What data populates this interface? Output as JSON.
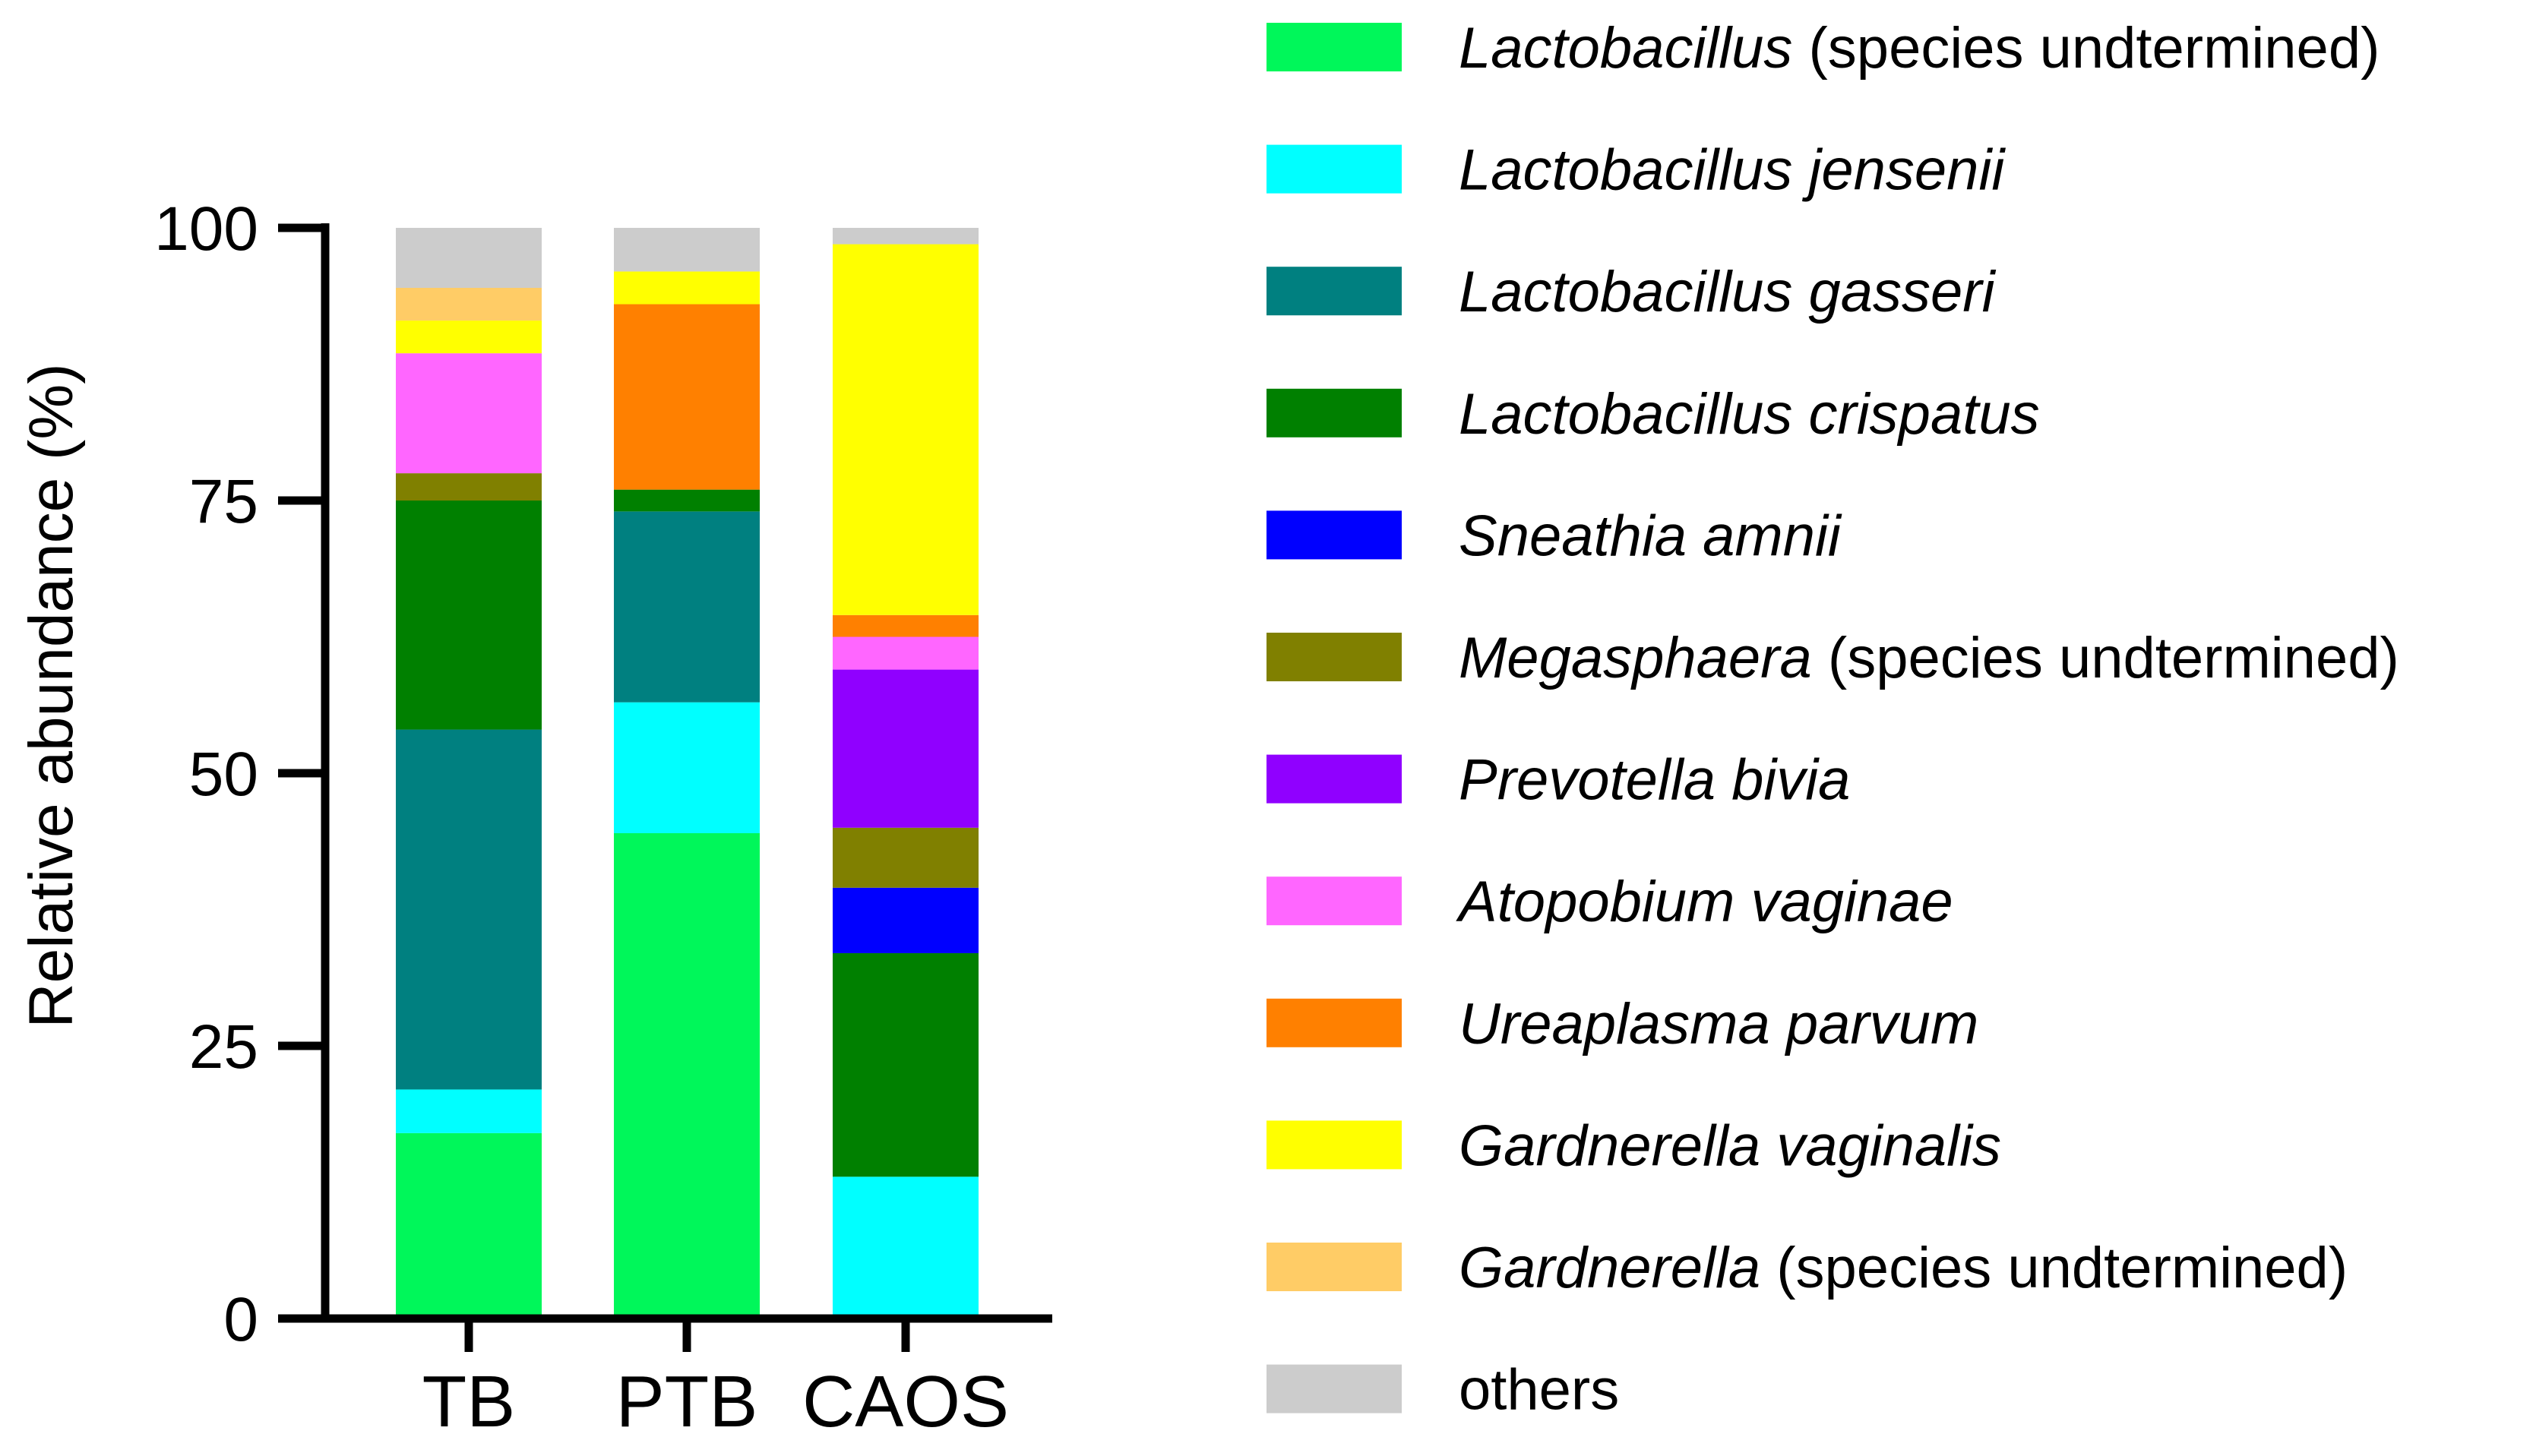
{
  "chart_data": {
    "type": "bar",
    "stacked": true,
    "title": "",
    "xlabel": "",
    "ylabel": "Relative abundance (%)",
    "ylim": [
      0,
      100
    ],
    "yticks": [
      0,
      25,
      50,
      75,
      100
    ],
    "ytick_labels": [
      "0",
      "25",
      "50",
      "75",
      "100"
    ],
    "categories": [
      "TB",
      "PTB",
      "CAOS"
    ],
    "series": [
      {
        "name": "Lactobacillus (species undtermined)",
        "name_italic": "Lactobacillus",
        "name_rest": " (species undtermined)",
        "color": "#00f75a",
        "values": [
          17,
          44.5,
          0
        ]
      },
      {
        "name": "Lactobacillus jensenii",
        "name_italic": "Lactobacillus jensenii",
        "name_rest": "",
        "color": "#00ffff",
        "values": [
          4,
          12,
          13
        ]
      },
      {
        "name": "Lactobacillus gasseri",
        "name_italic": "Lactobacillus gasseri",
        "name_rest": "",
        "color": "#008080",
        "values": [
          33,
          17.5,
          0
        ]
      },
      {
        "name": "Lactobacillus crispatus",
        "name_italic": "Lactobacillus crispatus",
        "name_rest": "",
        "color": "#008000",
        "values": [
          21,
          2,
          20.5
        ]
      },
      {
        "name": "Sneathia amnii",
        "name_italic": "Sneathia amnii",
        "name_rest": "",
        "color": "#0000ff",
        "values": [
          0,
          0,
          6
        ]
      },
      {
        "name": "Megasphaera (species undtermined)",
        "name_italic": "Megasphaera",
        "name_rest": " (species undtermined)",
        "color": "#808000",
        "values": [
          2.5,
          0,
          5.5
        ]
      },
      {
        "name": "Prevotella bivia",
        "name_italic": "Prevotella bivia",
        "name_rest": "",
        "color": "#9000ff",
        "values": [
          0,
          0,
          14.5
        ]
      },
      {
        "name": "Atopobium vaginae",
        "name_italic": "Atopobium vaginae",
        "name_rest": "",
        "color": "#ff66ff",
        "values": [
          11,
          0,
          3
        ]
      },
      {
        "name": "Ureaplasma parvum",
        "name_italic": "Ureaplasma parvum",
        "name_rest": "",
        "color": "#ff8000",
        "values": [
          0,
          17,
          2
        ]
      },
      {
        "name": "Gardnerella vaginalis",
        "name_italic": "Gardnerella vaginalis",
        "name_rest": "",
        "color": "#ffff00",
        "values": [
          3,
          3,
          34
        ]
      },
      {
        "name": "Gardnerella (species undtermined)",
        "name_italic": "Gardnerella",
        "name_rest": " (species undtermined)",
        "color": "#ffcc66",
        "values": [
          3,
          0,
          0
        ]
      },
      {
        "name": "others",
        "name_italic": "",
        "name_rest": "others",
        "color": "#cccccc",
        "values": [
          5.5,
          4,
          1.5
        ]
      }
    ],
    "legend": {
      "position": "right"
    },
    "grid": false
  }
}
